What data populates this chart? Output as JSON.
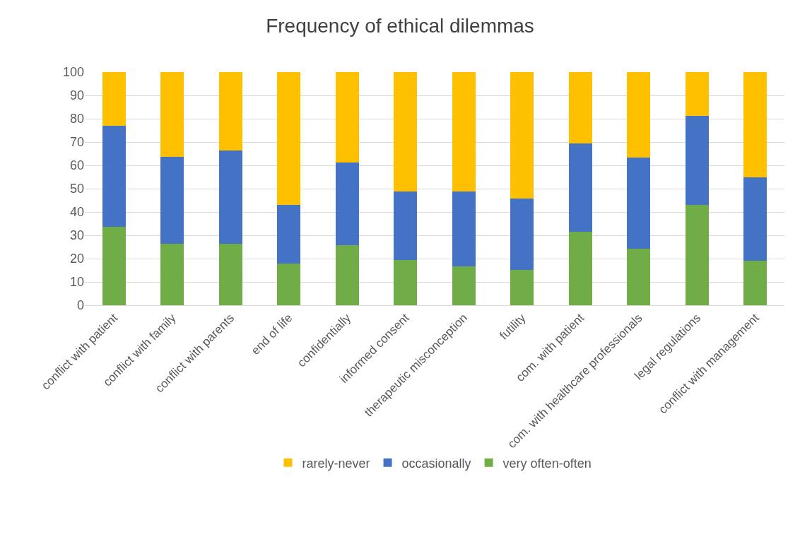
{
  "chart_data": {
    "type": "bar",
    "title": "Frequency of ethical dilemmas",
    "stacked": true,
    "categories": [
      "conflict with patient",
      "conflict with family",
      "conflict with parents",
      "end of life",
      "confidentially",
      "informed consent",
      "therapeutic misconception",
      "futility",
      "com. with patient",
      "com. with healthcare professionals",
      "legal regulations",
      "conflict with management"
    ],
    "series": [
      {
        "name": "very often-often",
        "color": "#70ad47",
        "values": [
          33.5,
          26.3,
          26.3,
          18,
          25.8,
          19.5,
          16.8,
          15.3,
          31.6,
          24.3,
          43,
          19.2
        ]
      },
      {
        "name": "occasionally",
        "color": "#4472c4",
        "values": [
          43.5,
          37.3,
          40.2,
          25,
          35.5,
          29.3,
          32,
          30.5,
          37.8,
          39,
          38.2,
          35.5
        ]
      },
      {
        "name": "rarely-never",
        "color": "#ffc000",
        "values": [
          23,
          36.4,
          33.5,
          57,
          38.7,
          51.2,
          51.2,
          54.2,
          30.6,
          36.7,
          18.8,
          45.3
        ]
      }
    ],
    "ylim": [
      0,
      100
    ],
    "yticks": [
      0,
      10,
      20,
      30,
      40,
      50,
      60,
      70,
      80,
      90,
      100
    ],
    "grid": "y",
    "legend": "bottom"
  }
}
